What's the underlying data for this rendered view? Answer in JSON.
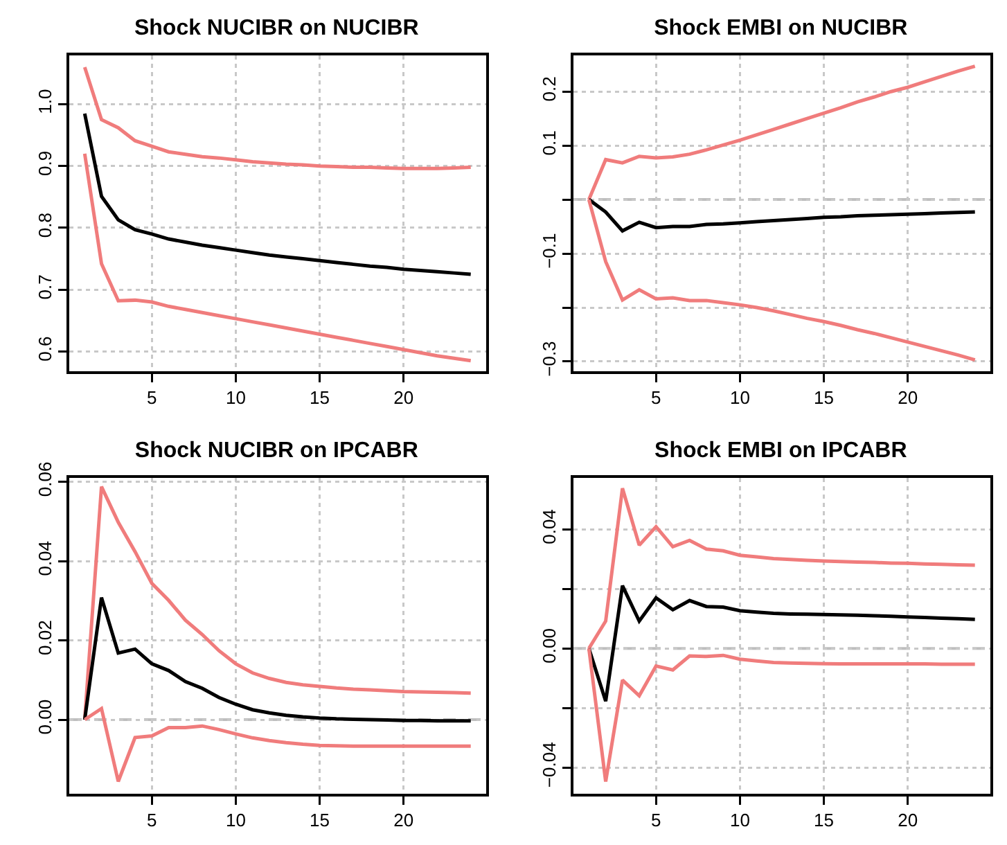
{
  "chart_data": [
    {
      "type": "line",
      "title": "Shock NUCIBR on NUCIBR",
      "x": [
        1,
        2,
        3,
        4,
        5,
        6,
        7,
        8,
        9,
        10,
        11,
        12,
        13,
        14,
        15,
        16,
        17,
        18,
        19,
        20,
        21,
        22,
        23,
        24
      ],
      "xlim": [
        0.08,
        24.92
      ],
      "xticks": [
        5,
        10,
        15,
        20
      ],
      "ylim": [
        0.568,
        1.079
      ],
      "yticks": [
        {
          "value": 0.6,
          "label": "0.6"
        },
        {
          "value": 0.7,
          "label": "0.7"
        },
        {
          "value": 0.8,
          "label": "0.8"
        },
        {
          "value": 0.9,
          "label": "0.9"
        },
        {
          "value": 1.0,
          "label": "1.0"
        }
      ],
      "grid": true,
      "series": [
        {
          "color": "#f07c7c",
          "values": [
            1.06,
            0.975,
            0.962,
            0.941,
            0.932,
            0.923,
            0.919,
            0.915,
            0.913,
            0.91,
            0.907,
            0.905,
            0.903,
            0.902,
            0.9,
            0.899,
            0.898,
            0.898,
            0.897,
            0.896,
            0.896,
            0.896,
            0.897,
            0.898
          ]
        },
        {
          "color": "#000000",
          "values": [
            0.985,
            0.851,
            0.813,
            0.797,
            0.79,
            0.782,
            0.777,
            0.772,
            0.768,
            0.764,
            0.76,
            0.756,
            0.753,
            0.75,
            0.747,
            0.744,
            0.741,
            0.738,
            0.736,
            0.733,
            0.731,
            0.729,
            0.727,
            0.725
          ]
        },
        {
          "color": "#f07c7c",
          "values": [
            0.92,
            0.742,
            0.682,
            0.683,
            0.68,
            0.673,
            0.668,
            0.663,
            0.658,
            0.653,
            0.648,
            0.643,
            0.638,
            0.633,
            0.628,
            0.623,
            0.618,
            0.613,
            0.608,
            0.603,
            0.598,
            0.593,
            0.589,
            0.585
          ]
        }
      ]
    },
    {
      "type": "line",
      "title": "Shock EMBI on NUCIBR",
      "x": [
        1,
        2,
        3,
        4,
        5,
        6,
        7,
        8,
        9,
        10,
        11,
        12,
        13,
        14,
        15,
        16,
        17,
        18,
        19,
        20,
        21,
        22,
        23,
        24
      ],
      "xlim": [
        0.08,
        24.92
      ],
      "xticks": [
        5,
        10,
        15,
        20
      ],
      "ylim": [
        -0.318,
        0.267
      ],
      "yticks": [
        {
          "value": -0.3,
          "label": "−0.3"
        },
        {
          "value": -0.2,
          "label": null
        },
        {
          "value": -0.1,
          "label": "−0.1"
        },
        {
          "value": 0,
          "label": null
        },
        {
          "value": 0.1,
          "label": "0.1"
        },
        {
          "value": 0.2,
          "label": "0.2"
        }
      ],
      "grid": true,
      "ref_lines": [
        {
          "axis": "y",
          "value": 0,
          "label": null,
          "color": "#bebebe",
          "line_style": "dashed"
        }
      ],
      "series": [
        {
          "color": "#f07c7c",
          "values": [
            0,
            0.074,
            0.068,
            0.08,
            0.077,
            0.079,
            0.084,
            0.092,
            0.101,
            0.11,
            0.12,
            0.13,
            0.14,
            0.15,
            0.16,
            0.17,
            0.181,
            0.19,
            0.2,
            0.208,
            0.218,
            0.228,
            0.238,
            0.247
          ]
        },
        {
          "color": "#000000",
          "values": [
            0,
            -0.023,
            -0.058,
            -0.042,
            -0.052,
            -0.05,
            -0.05,
            -0.046,
            -0.045,
            -0.043,
            -0.041,
            -0.039,
            -0.037,
            -0.035,
            -0.033,
            -0.032,
            -0.03,
            -0.029,
            -0.028,
            -0.027,
            -0.026,
            -0.025,
            -0.024,
            -0.023
          ]
        },
        {
          "color": "#f07c7c",
          "values": [
            0,
            -0.115,
            -0.186,
            -0.167,
            -0.184,
            -0.182,
            -0.187,
            -0.187,
            -0.191,
            -0.195,
            -0.2,
            -0.206,
            -0.213,
            -0.22,
            -0.226,
            -0.233,
            -0.241,
            -0.248,
            -0.256,
            -0.264,
            -0.272,
            -0.28,
            -0.288,
            -0.297
          ]
        }
      ]
    },
    {
      "type": "line",
      "title": "Shock NUCIBR on IPCABR",
      "x": [
        1,
        2,
        3,
        4,
        5,
        6,
        7,
        8,
        9,
        10,
        11,
        12,
        13,
        14,
        15,
        16,
        17,
        18,
        19,
        20,
        21,
        22,
        23,
        24
      ],
      "xlim": [
        0.08,
        24.92
      ],
      "xticks": [
        5,
        10,
        15,
        20
      ],
      "ylim": [
        -0.0187,
        0.061
      ],
      "yticks": [
        {
          "value": 0,
          "label": "0.00"
        },
        {
          "value": 0.02,
          "label": "0.02"
        },
        {
          "value": 0.04,
          "label": "0.04"
        },
        {
          "value": 0.06,
          "label": "0.06"
        }
      ],
      "grid": true,
      "ref_lines": [
        {
          "axis": "y",
          "value": 0,
          "label": null,
          "color": "#bebebe",
          "line_style": "dashed"
        }
      ],
      "series": [
        {
          "color": "#f07c7c",
          "values": [
            0,
            0.0588,
            0.0498,
            0.0424,
            0.0344,
            0.0301,
            0.0251,
            0.0215,
            0.0174,
            0.0141,
            0.0118,
            0.0104,
            0.0094,
            0.0088,
            0.0084,
            0.008,
            0.0077,
            0.0075,
            0.0073,
            0.0071,
            0.007,
            0.0069,
            0.0068,
            0.0067
          ]
        },
        {
          "color": "#000000",
          "values": [
            0,
            0.0308,
            0.0168,
            0.0178,
            0.0141,
            0.0124,
            0.0096,
            0.0079,
            0.0056,
            0.0039,
            0.0025,
            0.0017,
            0.0011,
            0.0007,
            0.0004,
            0.0002,
            0.0001,
            0.0,
            -0.0001,
            -0.0002,
            -0.0002,
            -0.0003,
            -0.0003,
            -0.0003
          ]
        },
        {
          "color": "#f07c7c",
          "values": [
            0,
            0.0028,
            -0.0156,
            -0.0045,
            -0.0041,
            -0.002,
            -0.002,
            -0.0016,
            -0.0025,
            -0.0036,
            -0.0046,
            -0.0053,
            -0.0058,
            -0.0062,
            -0.0065,
            -0.0066,
            -0.0067,
            -0.0067,
            -0.0067,
            -0.0067,
            -0.0067,
            -0.0067,
            -0.0067,
            -0.0067
          ]
        }
      ]
    },
    {
      "type": "line",
      "title": "Shock EMBI on IPCABR",
      "x": [
        1,
        2,
        3,
        4,
        5,
        6,
        7,
        8,
        9,
        10,
        11,
        12,
        13,
        14,
        15,
        16,
        17,
        18,
        19,
        20,
        21,
        22,
        23,
        24
      ],
      "xlim": [
        0.08,
        24.92
      ],
      "xticks": [
        5,
        10,
        15,
        20
      ],
      "ylim": [
        -0.0488,
        0.0573
      ],
      "yticks": [
        {
          "value": -0.04,
          "label": "−0.04"
        },
        {
          "value": -0.02,
          "label": null
        },
        {
          "value": 0,
          "label": "0.00"
        },
        {
          "value": 0.02,
          "label": null
        },
        {
          "value": 0.04,
          "label": "0.04"
        }
      ],
      "grid": true,
      "ref_lines": [
        {
          "axis": "y",
          "value": 0,
          "label": null,
          "color": "#bebebe",
          "line_style": "dashed"
        }
      ],
      "series": [
        {
          "color": "#f07c7c",
          "values": [
            0,
            0.0092,
            0.0538,
            0.0347,
            0.0409,
            0.0342,
            0.0363,
            0.0334,
            0.0328,
            0.0313,
            0.0308,
            0.0302,
            0.0299,
            0.0296,
            0.0294,
            0.0292,
            0.029,
            0.0289,
            0.0287,
            0.0286,
            0.0284,
            0.0283,
            0.0281,
            0.028
          ]
        },
        {
          "color": "#000000",
          "values": [
            0,
            -0.0177,
            0.0211,
            0.0092,
            0.017,
            0.013,
            0.0161,
            0.0141,
            0.0139,
            0.0127,
            0.0122,
            0.0118,
            0.0116,
            0.0115,
            0.0114,
            0.0113,
            0.0112,
            0.011,
            0.0108,
            0.0106,
            0.0104,
            0.0102,
            0.01,
            0.0098
          ]
        },
        {
          "color": "#f07c7c",
          "values": [
            0,
            -0.0447,
            -0.0106,
            -0.0159,
            -0.0059,
            -0.0072,
            -0.0025,
            -0.0027,
            -0.0023,
            -0.0036,
            -0.0042,
            -0.0047,
            -0.0049,
            -0.005,
            -0.0051,
            -0.0052,
            -0.0052,
            -0.0052,
            -0.0052,
            -0.0052,
            -0.0052,
            -0.0053,
            -0.0053,
            -0.0053
          ]
        }
      ]
    }
  ]
}
